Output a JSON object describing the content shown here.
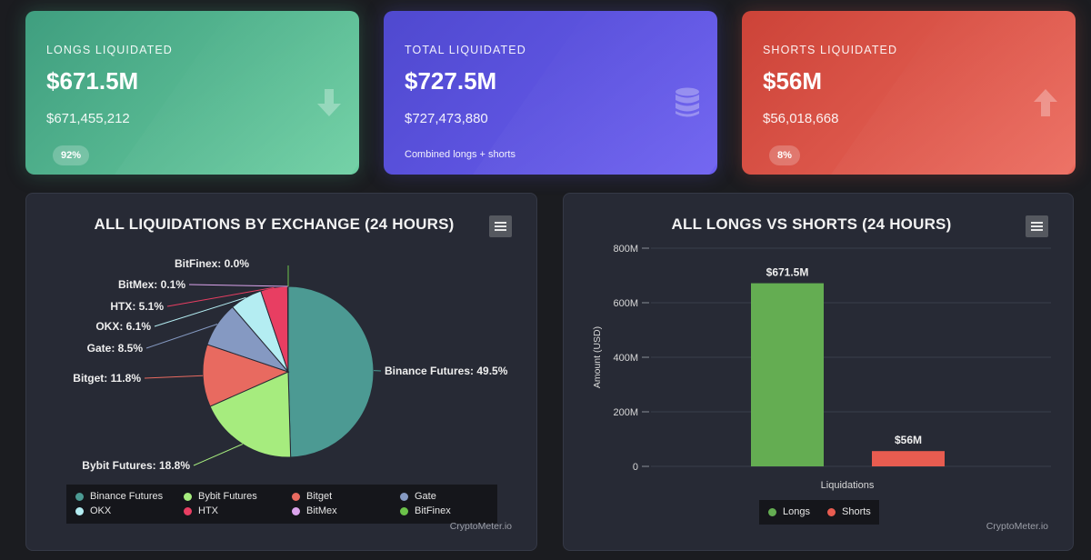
{
  "cards": {
    "longs": {
      "label": "LONGS LIQUIDATED",
      "big": "$671.5M",
      "exact": "$671,455,212",
      "badge": "92%",
      "icon": "arrow-down-icon"
    },
    "total": {
      "label": "TOTAL LIQUIDATED",
      "big": "$727.5M",
      "exact": "$727,473,880",
      "note": "Combined longs + shorts",
      "icon": "database-icon"
    },
    "shorts": {
      "label": "SHORTS LIQUIDATED",
      "big": "$56M",
      "exact": "$56,018,668",
      "badge": "8%",
      "icon": "arrow-up-icon"
    }
  },
  "credit": "CryptoMeter.io",
  "chart_data": [
    {
      "type": "pie",
      "title": "ALL LIQUIDATIONS BY EXCHANGE (24 HOURS)",
      "slices": [
        {
          "name": "Binance Futures",
          "value": 49.5,
          "label": "Binance Futures: 49.5%",
          "color": "#4c9a93"
        },
        {
          "name": "Bybit Futures",
          "value": 18.8,
          "label": "Bybit Futures: 18.8%",
          "color": "#a6ec7e"
        },
        {
          "name": "Bitget",
          "value": 11.8,
          "label": "Bitget: 11.8%",
          "color": "#e86a60"
        },
        {
          "name": "Gate",
          "value": 8.5,
          "label": "Gate: 8.5%",
          "color": "#8599c2"
        },
        {
          "name": "OKX",
          "value": 6.1,
          "label": "OKX: 6.1%",
          "color": "#b4edf2"
        },
        {
          "name": "HTX",
          "value": 5.1,
          "label": "HTX: 5.1%",
          "color": "#e83e62"
        },
        {
          "name": "BitMex",
          "value": 0.1,
          "label": "BitMex: 0.1%",
          "color": "#dba4ec"
        },
        {
          "name": "BitFinex",
          "value": 0.0,
          "label": "BitFinex: 0.0%",
          "color": "#6cc24a"
        }
      ],
      "legend": [
        "Binance Futures",
        "Bybit Futures",
        "Bitget",
        "Gate",
        "OKX",
        "HTX",
        "BitMex",
        "BitFinex"
      ],
      "legend_placement": "bottom"
    },
    {
      "type": "bar",
      "title": "ALL LONGS VS SHORTS (24 HOURS)",
      "categories": [
        "Liquidations"
      ],
      "xlabel": "Liquidations",
      "ylabel": "Amount (USD)",
      "ylim": [
        0,
        800000000
      ],
      "yticks": [
        0,
        200000000,
        400000000,
        600000000,
        800000000
      ],
      "ytick_labels": [
        "0",
        "200M",
        "400M",
        "600M",
        "800M"
      ],
      "grid": true,
      "series": [
        {
          "name": "Longs",
          "values": [
            671455212
          ],
          "label": "$671.5M",
          "color": "#64ad52"
        },
        {
          "name": "Shorts",
          "values": [
            56018668
          ],
          "label": "$56M",
          "color": "#e85c50"
        }
      ],
      "legend_placement": "bottom"
    }
  ]
}
